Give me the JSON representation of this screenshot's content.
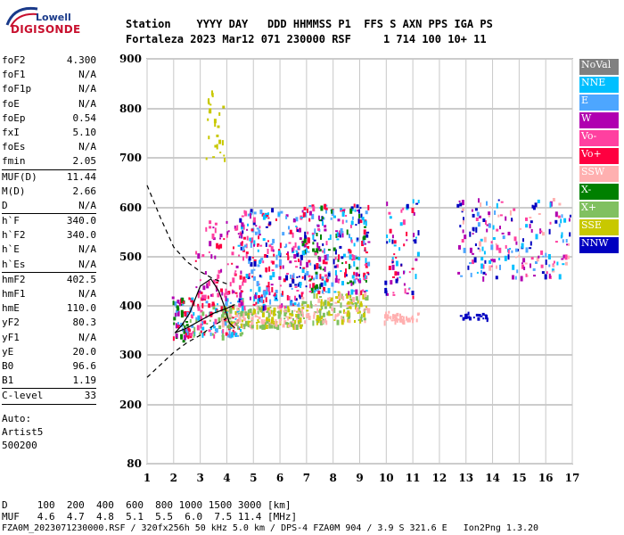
{
  "logo": {
    "line1": "Lowell",
    "line2": "DIGISONDE"
  },
  "header": {
    "line1": "Station    YYYY DAY   DDD HHMMSS P1  FFS S AXN PPS IGA PS",
    "line2": "Fortaleza 2023 Mar12 071 230000 RSF     1 714 100 10+ 11"
  },
  "sidebar": {
    "group1": [
      {
        "label": "foF2",
        "value": "4.300"
      },
      {
        "label": "foF1",
        "value": "N/A"
      },
      {
        "label": "foF1p",
        "value": "N/A"
      },
      {
        "label": "foE",
        "value": "N/A"
      },
      {
        "label": "foEp",
        "value": "0.54"
      },
      {
        "label": "fxI",
        "value": "5.10"
      },
      {
        "label": "foEs",
        "value": "N/A"
      },
      {
        "label": "fmin",
        "value": "2.05"
      }
    ],
    "group2": [
      {
        "label": "MUF(D)",
        "value": "11.44"
      },
      {
        "label": "M(D)",
        "value": "2.66"
      },
      {
        "label": "D",
        "value": "N/A"
      }
    ],
    "group3": [
      {
        "label": "h`F",
        "value": "340.0"
      },
      {
        "label": "h`F2",
        "value": "340.0"
      },
      {
        "label": "h`E",
        "value": "N/A"
      },
      {
        "label": "h`Es",
        "value": "N/A"
      }
    ],
    "group4": [
      {
        "label": "hmF2",
        "value": "402.5"
      },
      {
        "label": "hmF1",
        "value": "N/A"
      },
      {
        "label": "hmE",
        "value": "110.0"
      },
      {
        "label": "yF2",
        "value": "80.3"
      },
      {
        "label": "yF1",
        "value": "N/A"
      },
      {
        "label": "yE",
        "value": "20.0"
      },
      {
        "label": "B0",
        "value": "96.6"
      },
      {
        "label": "B1",
        "value": "1.19"
      }
    ],
    "group5": [
      {
        "label": "C-level",
        "value": "33"
      }
    ],
    "footer": [
      "Auto:",
      "Artist5",
      "500200"
    ]
  },
  "legend": [
    {
      "label": "NoVal",
      "color": "#808080"
    },
    {
      "label": "NNE",
      "color": "#00bfff"
    },
    {
      "label": "E",
      "color": "#4da6ff"
    },
    {
      "label": "W",
      "color": "#b000b0"
    },
    {
      "label": "Vo-",
      "color": "#ff40a0"
    },
    {
      "label": "Vo+",
      "color": "#ff0040"
    },
    {
      "label": "SSW",
      "color": "#ffb0b0"
    },
    {
      "label": "X-",
      "color": "#008000"
    },
    {
      "label": "X+",
      "color": "#80c060"
    },
    {
      "label": "SSE",
      "color": "#c8c800"
    },
    {
      "label": "NNW",
      "color": "#0000c0"
    }
  ],
  "bottom": {
    "line1": "D     100  200  400  600  800 1000 1500 3000 [km]",
    "line2": "MUF   4.6  4.7  4.8  5.1  5.5  6.0  7.5 11.4 [MHz]",
    "line3": "FZA0M_2023071230000.RSF / 320fx256h 50 kHz 5.0 km / DPS-4 FZA0M 904 / 3.9 S 321.6 E   Ion2Png 1.3.20"
  },
  "chart_data": {
    "type": "scatter",
    "xlim": [
      1,
      17
    ],
    "ylim": [
      80,
      900
    ],
    "xticks": [
      1,
      2,
      3,
      4,
      5,
      6,
      7,
      8,
      9,
      10,
      11,
      12,
      13,
      14,
      15,
      16,
      17
    ],
    "yticks": [
      80,
      200,
      300,
      400,
      500,
      600,
      700,
      800,
      900
    ],
    "grid": true,
    "legend_position": "right",
    "clusters": [
      {
        "x": [
          1.9,
          2.6
        ],
        "y": [
          330,
          420
        ],
        "colors": [
          "#ff0040",
          "#4da6ff",
          "#008000",
          "#b000b0"
        ],
        "density": 60
      },
      {
        "x": [
          2.6,
          4.6
        ],
        "y": [
          340,
          420
        ],
        "colors": [
          "#ff0040",
          "#4da6ff",
          "#80c060",
          "#00bfff",
          "#ff40a0"
        ],
        "density": 140
      },
      {
        "x": [
          2.8,
          4.6
        ],
        "y": [
          420,
          580
        ],
        "colors": [
          "#ff0040",
          "#b000b0",
          "#ff40a0"
        ],
        "density": 90
      },
      {
        "x": [
          3.2,
          3.9
        ],
        "y": [
          700,
          840
        ],
        "colors": [
          "#c8c800"
        ],
        "density": 25
      },
      {
        "x": [
          3.8,
          6.8
        ],
        "y": [
          360,
          400
        ],
        "colors": [
          "#c8c800",
          "#ffb0b0",
          "#80c060"
        ],
        "density": 220
      },
      {
        "x": [
          4.4,
          6.8
        ],
        "y": [
          400,
          600
        ],
        "colors": [
          "#ff0040",
          "#ff40a0",
          "#b000b0",
          "#4da6ff",
          "#00bfff",
          "#0000c0"
        ],
        "density": 260
      },
      {
        "x": [
          6.8,
          9.3
        ],
        "y": [
          370,
          430
        ],
        "colors": [
          "#c8c800",
          "#ffb0b0",
          "#80c060"
        ],
        "density": 160
      },
      {
        "x": [
          6.8,
          9.3
        ],
        "y": [
          430,
          610
        ],
        "colors": [
          "#ff0040",
          "#b000b0",
          "#00bfff",
          "#4da6ff",
          "#0000c0",
          "#ff40a0",
          "#008000"
        ],
        "density": 280
      },
      {
        "x": [
          9.9,
          11.2
        ],
        "y": [
          370,
          390
        ],
        "colors": [
          "#ffb0b0"
        ],
        "density": 40
      },
      {
        "x": [
          9.9,
          11.2
        ],
        "y": [
          420,
          620
        ],
        "colors": [
          "#ff0040",
          "#ff40a0",
          "#b000b0",
          "#00bfff",
          "#0000c0"
        ],
        "density": 70
      },
      {
        "x": [
          12.7,
          13.8
        ],
        "y": [
          375,
          395
        ],
        "colors": [
          "#0000c0"
        ],
        "density": 20
      },
      {
        "x": [
          12.6,
          16.9
        ],
        "y": [
          460,
          620
        ],
        "colors": [
          "#4da6ff",
          "#00bfff",
          "#b000b0",
          "#ff40a0",
          "#0000c0",
          "#ffb0b0"
        ],
        "density": 200
      }
    ],
    "trace_curves": [
      {
        "style": "solid",
        "points": [
          [
            2.05,
            345
          ],
          [
            2.3,
            360
          ],
          [
            2.6,
            385
          ],
          [
            3.0,
            440
          ],
          [
            3.4,
            455
          ],
          [
            3.7,
            430
          ],
          [
            3.9,
            400
          ],
          [
            4.1,
            365
          ],
          [
            4.3,
            355
          ]
        ]
      },
      {
        "style": "solid",
        "points": [
          [
            2.05,
            345
          ],
          [
            2.5,
            355
          ],
          [
            3.0,
            370
          ],
          [
            3.5,
            385
          ],
          [
            4.0,
            395
          ],
          [
            4.3,
            402.5
          ]
        ]
      },
      {
        "style": "dashed",
        "points": [
          [
            1.0,
            645
          ],
          [
            1.5,
            580
          ],
          [
            2.0,
            520
          ],
          [
            2.5,
            490
          ],
          [
            3.0,
            470
          ],
          [
            3.5,
            455
          ],
          [
            4.0,
            445
          ]
        ]
      },
      {
        "style": "dashed",
        "points": [
          [
            1.0,
            255
          ],
          [
            1.5,
            280
          ],
          [
            2.0,
            305
          ],
          [
            2.5,
            325
          ],
          [
            3.0,
            340
          ],
          [
            3.5,
            360
          ],
          [
            4.0,
            375
          ]
        ]
      }
    ]
  }
}
